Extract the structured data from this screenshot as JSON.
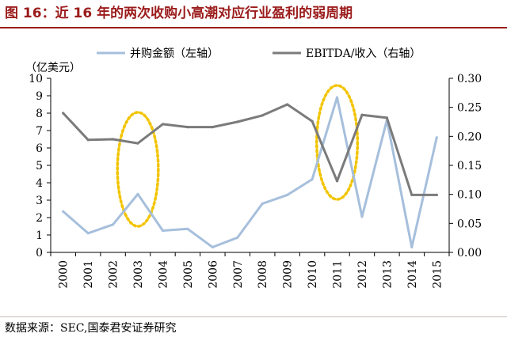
{
  "header": {
    "title": "图 16：近 16 年的两次收购小高潮对应行业盈利的弱周期"
  },
  "footer": {
    "source": "数据来源：SEC,国泰君安证券研究"
  },
  "colors": {
    "title": "#9b1b1b",
    "series_ma": "#a6bfdc",
    "series_ratio": "#7b7b7b",
    "highlight": "#f2c400",
    "axis": "#000000"
  },
  "chart_data": {
    "type": "line",
    "unit_left": "（亿美元）",
    "x": [
      "2000",
      "2001",
      "2002",
      "2003",
      "2004",
      "2005",
      "2006",
      "2007",
      "2008",
      "2009",
      "2010",
      "2011",
      "2012",
      "2013",
      "2014",
      "2015"
    ],
    "ylim_left": [
      0,
      10
    ],
    "yticks_left": [
      "0",
      "1",
      "2",
      "3",
      "4",
      "5",
      "6",
      "7",
      "8",
      "9",
      "10"
    ],
    "ylim_right": [
      0,
      0.3
    ],
    "yticks_right": [
      "0.00",
      "0.05",
      "0.10",
      "0.15",
      "0.20",
      "0.25",
      "0.30"
    ],
    "legend_position": "top",
    "grid": false,
    "series": [
      {
        "name": "并购金额（左轴）",
        "axis": "left",
        "color": "#a6bfdc",
        "values": [
          2.35,
          1.1,
          1.6,
          3.35,
          1.25,
          1.35,
          0.3,
          0.85,
          2.8,
          3.3,
          4.2,
          8.9,
          2.05,
          7.6,
          0.3,
          6.6
        ]
      },
      {
        "name": "EBITDA/收入（右轴）",
        "axis": "right",
        "color": "#7b7b7b",
        "values": [
          0.24,
          0.194,
          0.195,
          0.188,
          0.221,
          0.216,
          0.216,
          0.225,
          0.236,
          0.255,
          0.226,
          0.123,
          0.237,
          0.232,
          0.099,
          0.099
        ]
      }
    ],
    "highlights": [
      {
        "year_start": "2002",
        "year_end": "2004"
      },
      {
        "year_start": "2010",
        "year_end": "2012"
      }
    ]
  }
}
